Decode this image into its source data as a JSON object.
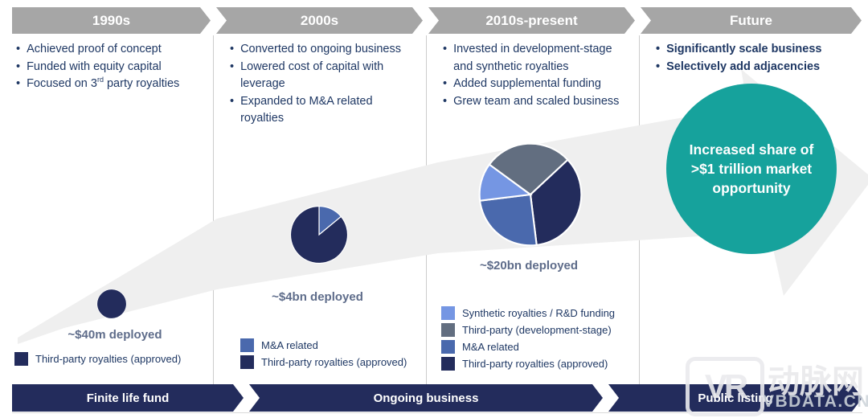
{
  "eras": [
    {
      "label": "1990s"
    },
    {
      "label": "2000s"
    },
    {
      "label": "2010s-present"
    },
    {
      "label": "Future"
    }
  ],
  "columns": [
    {
      "bullets": [
        "Achieved proof of concept",
        "Funded with equity capital"
      ],
      "bullet3": {
        "pre": "Focused on 3",
        "sup": "rd",
        "post": " party royalties"
      },
      "deployed_label": "~$40m deployed",
      "legend": [
        {
          "label": "Third-party royalties (approved)",
          "color": "#232c5c"
        }
      ]
    },
    {
      "bullets": [
        "Converted to ongoing business",
        "Lowered cost of capital with leverage",
        "Expanded to M&A related royalties"
      ],
      "deployed_label": "~$4bn deployed",
      "legend": [
        {
          "label": "M&A related",
          "color": "#4a69ad"
        },
        {
          "label": "Third-party royalties (approved)",
          "color": "#232c5c"
        }
      ]
    },
    {
      "bullets": [
        "Invested in development-stage and synthetic royalties",
        "Added supplemental funding",
        "Grew team and scaled business"
      ],
      "deployed_label": "~$20bn deployed",
      "legend": [
        {
          "label": "Synthetic royalties / R&D funding",
          "color": "#7596e3"
        },
        {
          "label": "Third-party (development-stage)",
          "color": "#626e80"
        },
        {
          "label": "M&A related",
          "color": "#4a69ad"
        },
        {
          "label": "Third-party royalties (approved)",
          "color": "#232c5c"
        }
      ]
    },
    {
      "bullets": [
        "Significantly scale business",
        "Selectively add adjacencies"
      ]
    }
  ],
  "future_circle": {
    "lines": [
      "Increased share of",
      ">$1 trillion market",
      "opportunity"
    ]
  },
  "bottom_bar": {
    "phases": [
      "Finite life fund",
      "Ongoing business",
      "Public listing"
    ]
  },
  "watermark": {
    "logo": "VR",
    "name": "动脉网",
    "site": "VBDATA.CN"
  },
  "colors": {
    "era_header_gray": "#a6a6a6",
    "navy": "#232c5c",
    "medium_blue": "#4a69ad",
    "light_blue": "#7596e3",
    "slate_gray": "#626e80",
    "teal": "#16a29c",
    "arrow_gray": "#efefef",
    "text_navy": "#1f3864",
    "deployed_text": "#5e6c8a"
  },
  "chart_data": {
    "type": "pie",
    "pies": [
      {
        "id": "deployment-1990s",
        "label": "~$40m deployed",
        "slices": [
          {
            "name": "Third-party royalties (approved)",
            "pct": 100,
            "color": "#232c5c"
          }
        ]
      },
      {
        "id": "deployment-2000s",
        "label": "~$4bn deployed",
        "start_deg": 0,
        "slices": [
          {
            "name": "M&A related",
            "pct": 14,
            "color": "#4a69ad"
          },
          {
            "name": "Third-party royalties (approved)",
            "pct": 86,
            "color": "#232c5c"
          }
        ]
      },
      {
        "id": "deployment-2010s",
        "label": "~$20bn deployed",
        "start_deg": 47,
        "slices": [
          {
            "name": "Third-party royalties (approved)",
            "pct": 35,
            "color": "#232c5c"
          },
          {
            "name": "M&A related",
            "pct": 25,
            "color": "#4a69ad"
          },
          {
            "name": "Synthetic royalties / R&D funding",
            "pct": 12,
            "color": "#7596e3"
          },
          {
            "name": "Third-party (development-stage)",
            "pct": 28,
            "color": "#626e80"
          }
        ]
      }
    ]
  }
}
